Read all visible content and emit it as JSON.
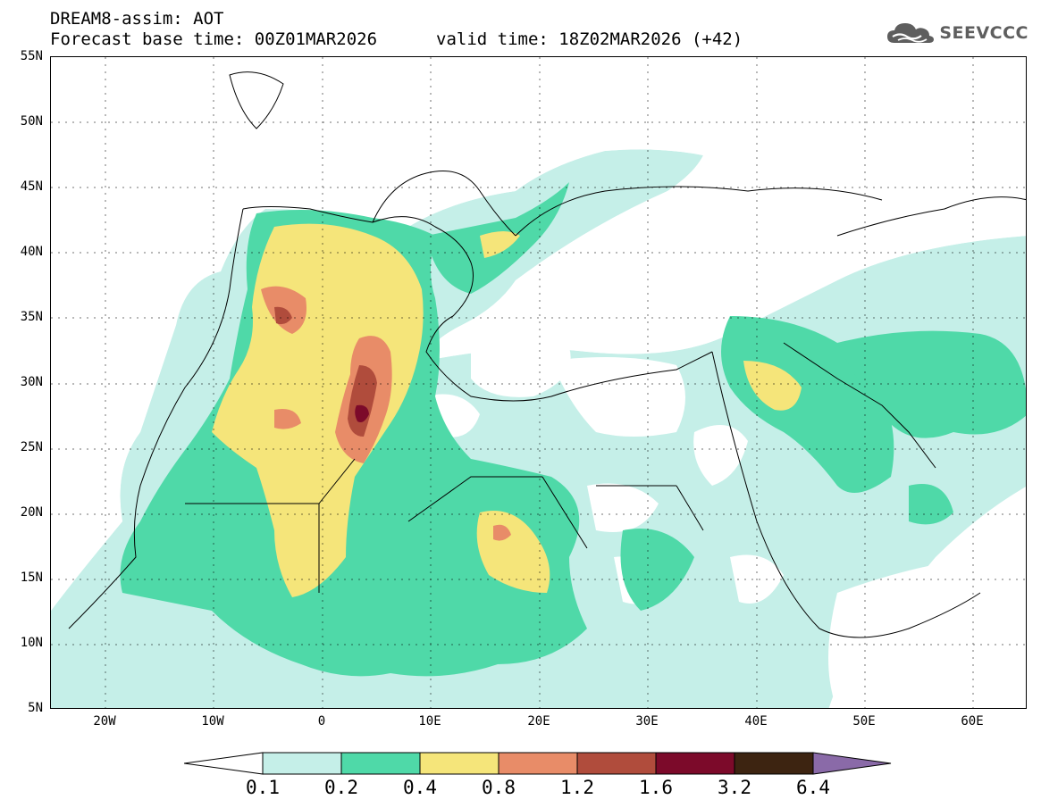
{
  "header": {
    "line1": "DREAM8-assim: AOT",
    "line2": "Forecast base time: 00Z01MAR2026",
    "line2b": "valid time: 18Z02MAR2026 (+42)"
  },
  "logo": {
    "text": "SEEVCCC",
    "icon": "cloud-icon"
  },
  "axes": {
    "lat_labels": [
      "55N",
      "50N",
      "45N",
      "40N",
      "35N",
      "30N",
      "25N",
      "20N",
      "15N",
      "10N",
      "5N"
    ],
    "lon_labels": [
      "20W",
      "10W",
      "0",
      "10E",
      "20E",
      "30E",
      "40E",
      "50E",
      "60E"
    ],
    "lon_range": [
      -25,
      65
    ],
    "lat_range": [
      5,
      55
    ]
  },
  "legend": {
    "labels": [
      "0.1",
      "0.2",
      "0.4",
      "0.8",
      "1.2",
      "1.6",
      "3.2",
      "6.4"
    ],
    "colors": [
      "#ffffff",
      "#c5efe8",
      "#4fd9a8",
      "#f5e57a",
      "#e88c68",
      "#b04c3c",
      "#7c0a2a",
      "#3d2411",
      "#8a6aa8"
    ]
  }
}
